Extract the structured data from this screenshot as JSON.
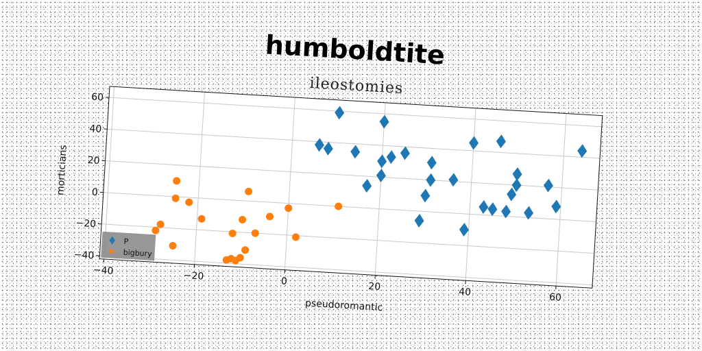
{
  "chart_data": {
    "type": "scatter",
    "title": "humboldtite",
    "subtitle": "ileostomies",
    "xlabel": "pseudoromantic",
    "ylabel": "morticians",
    "xlim": [
      -41,
      68
    ],
    "ylim": [
      -42,
      67
    ],
    "xticks": [
      -40,
      -20,
      0,
      20,
      40,
      60
    ],
    "yticks": [
      -40,
      -20,
      0,
      20,
      40,
      60
    ],
    "grid": true,
    "legend_position": "lower-left",
    "series": [
      {
        "name": "P",
        "marker": "diamond",
        "color": "#1f77b4",
        "points": [
          {
            "x": 10,
            "y": 59
          },
          {
            "x": 20,
            "y": 55
          },
          {
            "x": 6,
            "y": 38
          },
          {
            "x": 8,
            "y": 36
          },
          {
            "x": 14,
            "y": 35
          },
          {
            "x": 20,
            "y": 30
          },
          {
            "x": 22,
            "y": 33
          },
          {
            "x": 25,
            "y": 36
          },
          {
            "x": 20,
            "y": 21
          },
          {
            "x": 17,
            "y": 14
          },
          {
            "x": 31,
            "y": 31
          },
          {
            "x": 31,
            "y": 20
          },
          {
            "x": 30,
            "y": 10
          },
          {
            "x": 29,
            "y": -6
          },
          {
            "x": 36,
            "y": 21
          },
          {
            "x": 40,
            "y": 45
          },
          {
            "x": 46,
            "y": 47
          },
          {
            "x": 39,
            "y": -10
          },
          {
            "x": 43,
            "y": 5
          },
          {
            "x": 45,
            "y": 4
          },
          {
            "x": 48,
            "y": 3
          },
          {
            "x": 50,
            "y": 27
          },
          {
            "x": 50,
            "y": 20
          },
          {
            "x": 49,
            "y": 14
          },
          {
            "x": 53,
            "y": 3
          },
          {
            "x": 57,
            "y": 21
          },
          {
            "x": 59,
            "y": 8
          },
          {
            "x": 64,
            "y": 44
          }
        ]
      },
      {
        "name": "bigbury",
        "marker": "circle",
        "color": "#ff7f0e",
        "points": [
          {
            "x": -25,
            "y": 10
          },
          {
            "x": -25,
            "y": -1
          },
          {
            "x": -22,
            "y": -3
          },
          {
            "x": -19,
            "y": -13
          },
          {
            "x": -28,
            "y": -18
          },
          {
            "x": -29,
            "y": -22
          },
          {
            "x": -25,
            "y": -31
          },
          {
            "x": -9,
            "y": 6
          },
          {
            "x": -10,
            "y": -12
          },
          {
            "x": -12,
            "y": -21
          },
          {
            "x": -7,
            "y": -20
          },
          {
            "x": -4,
            "y": -9
          },
          {
            "x": 0,
            "y": -3
          },
          {
            "x": 2,
            "y": -21
          },
          {
            "x": 11,
            "y": 0
          },
          {
            "x": -9,
            "y": -31
          },
          {
            "x": -10,
            "y": -36
          },
          {
            "x": -11,
            "y": -38
          },
          {
            "x": -12,
            "y": -37
          },
          {
            "x": -13,
            "y": -38
          }
        ]
      }
    ]
  }
}
